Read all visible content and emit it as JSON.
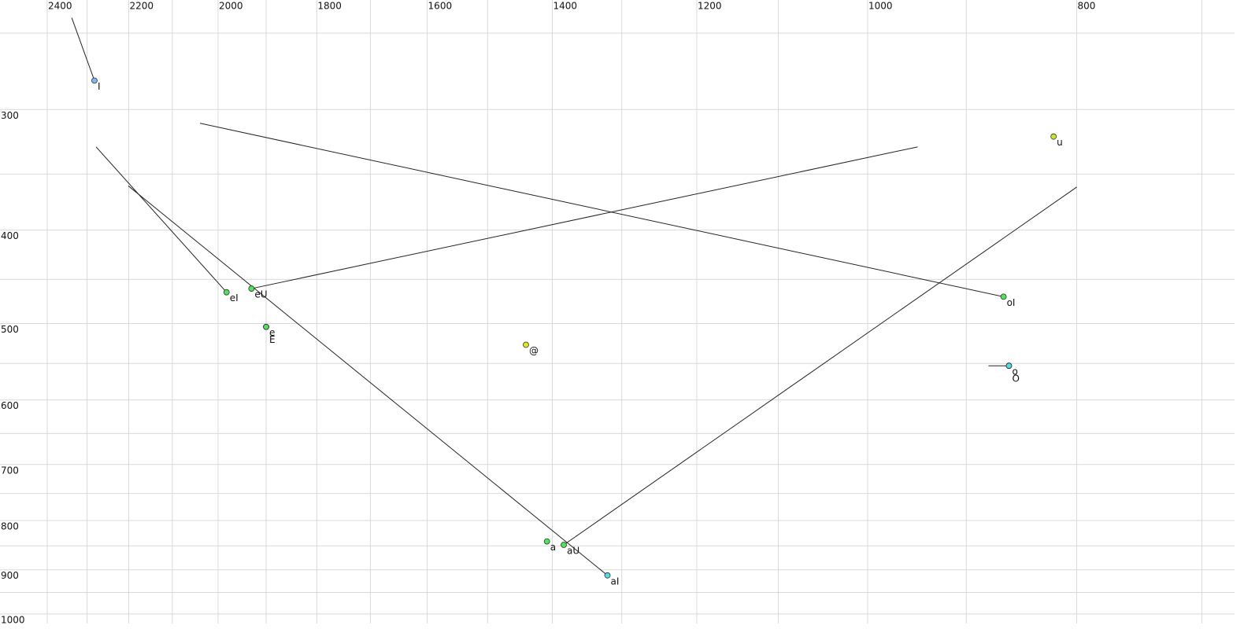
{
  "chart_data": {
    "type": "scatter",
    "xscale": "log",
    "yscale": "log",
    "xlim": [
      2524,
      676
    ],
    "ylim": [
      231,
      1023
    ],
    "xticks": [
      2400,
      2200,
      2000,
      1800,
      1600,
      1400,
      1200,
      1000,
      800
    ],
    "xminor": [
      2300,
      2100,
      1900,
      1700,
      1500,
      1300,
      1100,
      900,
      700
    ],
    "yticks": [
      300,
      400,
      500,
      600,
      700,
      800,
      900,
      1000
    ],
    "yminor": [
      250,
      350,
      450,
      550,
      650,
      750,
      850,
      950
    ],
    "grid": true,
    "points": [
      {
        "label": "I",
        "x": 2282,
        "y": 280,
        "color": "#7fb8f0",
        "from_x": 2338,
        "from_y": 241
      },
      {
        "label": "u",
        "x": 820,
        "y": 320,
        "color": "#c8e628"
      },
      {
        "label": "eI",
        "x": 1982,
        "y": 464,
        "color": "#4fe35c",
        "from_x": 2278,
        "from_y": 328
      },
      {
        "label": "eU",
        "x": 1930,
        "y": 460,
        "color": "#4fe35c",
        "from_x": 948,
        "from_y": 328
      },
      {
        "label": "e",
        "x": 1900,
        "y": 504,
        "color": "#4fe35c"
      },
      {
        "label": "E",
        "x": 1900,
        "y": 504,
        "color": "#4fe35c"
      },
      {
        "label": "@",
        "x": 1440,
        "y": 526,
        "color": "#e4e620"
      },
      {
        "label": "oI",
        "x": 865,
        "y": 469,
        "color": "#4fe35c",
        "from_x": 2039,
        "from_y": 310
      },
      {
        "label": "o",
        "x": 860,
        "y": 553,
        "color": "#4fdde8",
        "from_x": 879,
        "from_y": 553
      },
      {
        "label": "O",
        "x": 860,
        "y": 553,
        "color": "#4fdde8"
      },
      {
        "label": "a",
        "x": 1408,
        "y": 841,
        "color": "#4fe35c"
      },
      {
        "label": "aU",
        "x": 1383,
        "y": 848,
        "color": "#4fe35c",
        "from_x": 800,
        "from_y": 361
      },
      {
        "label": "aI",
        "x": 1320,
        "y": 912,
        "color": "#5ad8e8",
        "from_x": 2201,
        "from_y": 360
      }
    ]
  }
}
